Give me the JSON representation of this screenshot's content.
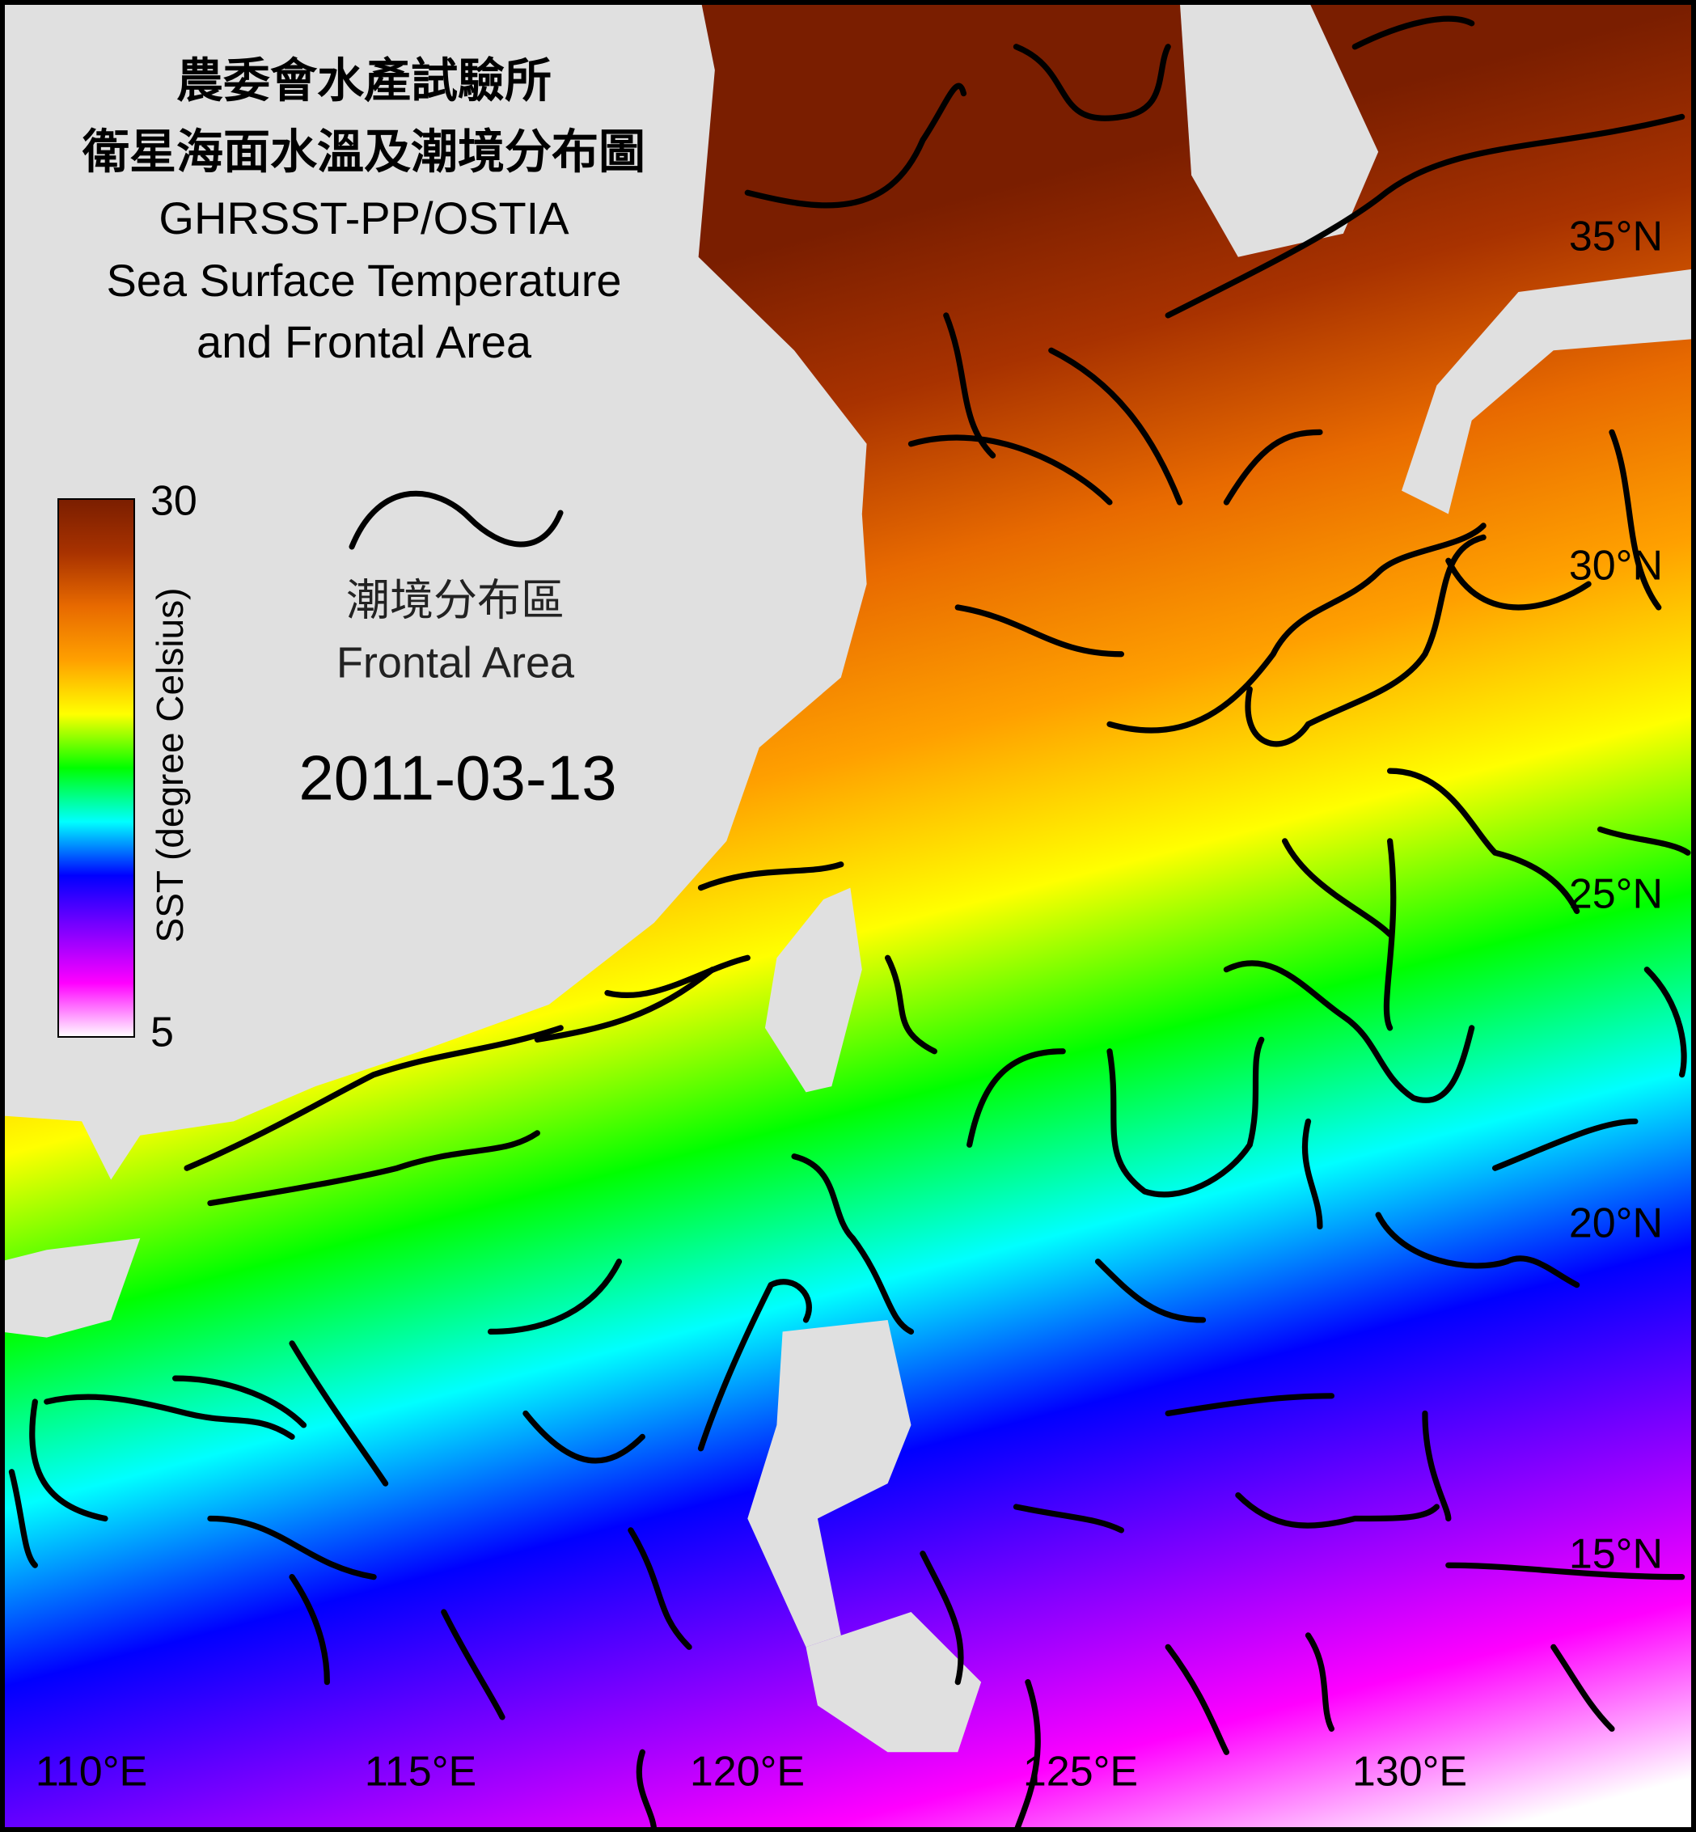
{
  "title": [
    "農委會水產試驗所",
    "衛星海面水溫及潮境分布圖",
    "GHRSST-PP/OSTIA",
    "Sea Surface Temperature",
    "and Frontal Area"
  ],
  "colorbar": {
    "label": "SST (degree Celsius)",
    "min": 5,
    "max": 30,
    "colors": [
      "#ffffff",
      "#ff00ff",
      "#8000ff",
      "#0000ff",
      "#00ffff",
      "#00ff00",
      "#ffff00",
      "#ffa000",
      "#e86a00",
      "#a83200",
      "#7a1e00"
    ]
  },
  "legend": {
    "label_zh": "潮境分布區",
    "label_en": "Frontal Area"
  },
  "date": "2011-03-13",
  "lon_labels": [
    "110°E",
    "115°E",
    "120°E",
    "125°E",
    "130°E"
  ],
  "lat_labels": [
    "35°N",
    "30°N",
    "25°N",
    "20°N",
    "15°N"
  ]
}
